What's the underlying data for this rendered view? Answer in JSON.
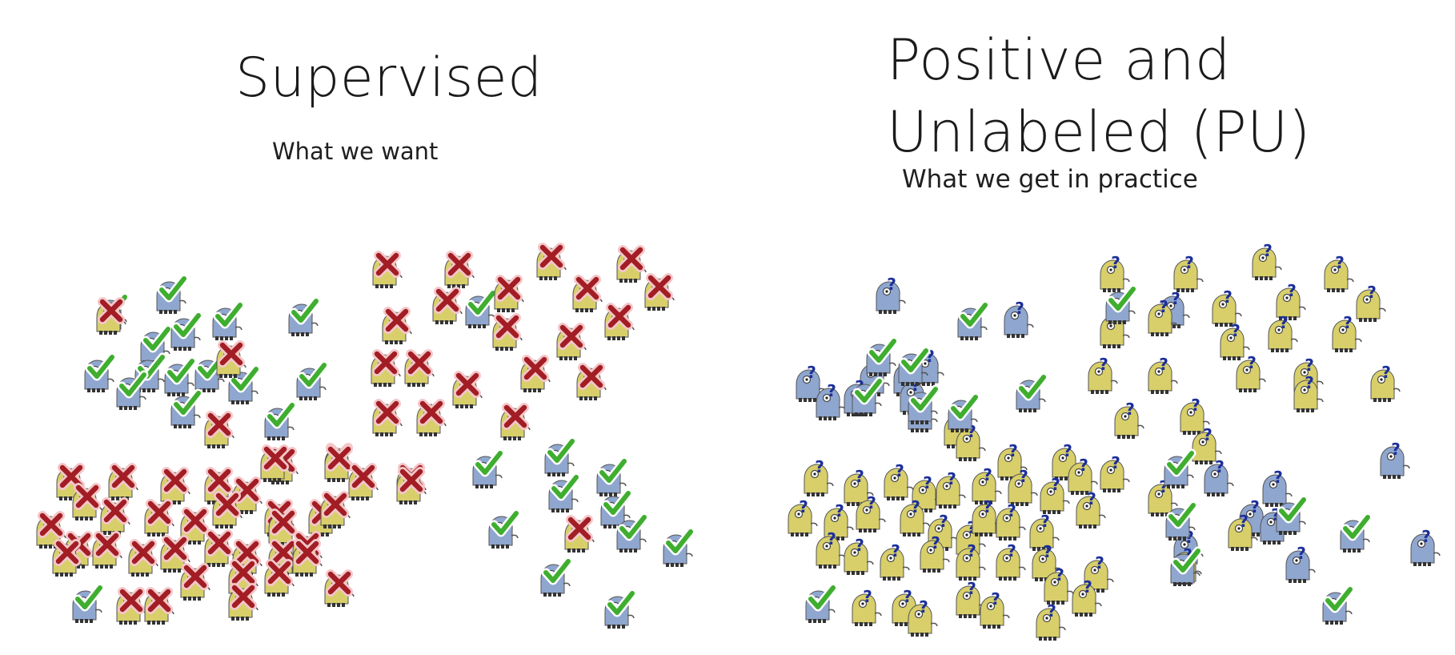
{
  "left": {
    "title": "Supervised",
    "subtitle": "What we want"
  },
  "right": {
    "title_line1": "Positive and",
    "title_line2": "Unlabeled (PU)",
    "subtitle": "What we get in practice"
  },
  "icons": {
    "positive": "check-mark",
    "negative": "x-mark",
    "unlabeled": "question-mark",
    "positive_creature": "blue-creature",
    "negative_creature": "yellow-creature"
  },
  "colors": {
    "blue_creature": "#8fa6cf",
    "yellow_creature": "#d8cf6a",
    "check_green": "#3fae2f",
    "cross_red": "#a31d24",
    "question_blue": "#1c2f9a"
  }
}
